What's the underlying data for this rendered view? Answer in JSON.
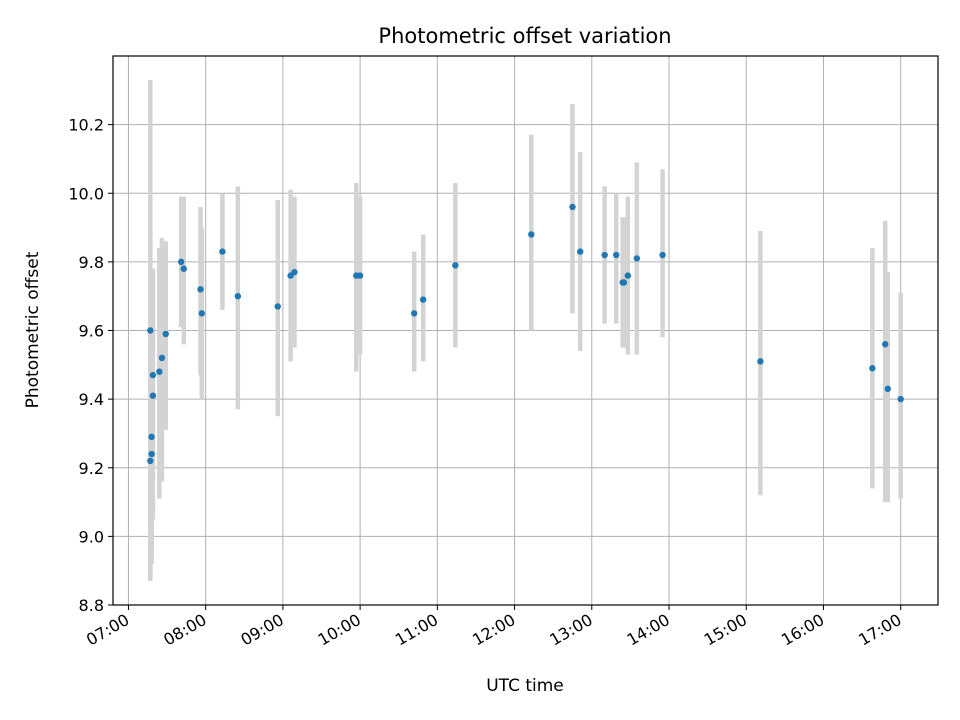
{
  "chart_data": {
    "type": "scatter",
    "title": "Photometric offset variation",
    "xlabel": "UTC time",
    "ylabel": "Photometric offset",
    "xlim": [
      "06:48",
      "17:29"
    ],
    "ylim": [
      8.8,
      10.4
    ],
    "x_ticks": [
      "07:00",
      "08:00",
      "09:00",
      "10:00",
      "11:00",
      "12:00",
      "13:00",
      "14:00",
      "15:00",
      "16:00",
      "17:00"
    ],
    "y_ticks": [
      8.8,
      9.0,
      9.2,
      9.4,
      9.6,
      9.8,
      10.0,
      10.2
    ],
    "grid": true,
    "colors": {
      "point": "#1f77b4",
      "errorbar": "#d3d3d3",
      "grid": "#b0b0b0"
    },
    "points": [
      {
        "x": "07:17",
        "y": 9.6,
        "ylow": 8.87,
        "yhigh": 10.33
      },
      {
        "x": "07:17",
        "y": 9.22,
        "ylow": 8.88,
        "yhigh": 9.56
      },
      {
        "x": "07:18",
        "y": 9.24,
        "ylow": 8.95,
        "yhigh": 9.53
      },
      {
        "x": "07:18",
        "y": 9.29,
        "ylow": 8.92,
        "yhigh": 9.66
      },
      {
        "x": "07:19",
        "y": 9.41,
        "ylow": 9.05,
        "yhigh": 9.77
      },
      {
        "x": "07:19",
        "y": 9.47,
        "ylow": 9.16,
        "yhigh": 9.78
      },
      {
        "x": "07:24",
        "y": 9.48,
        "ylow": 9.11,
        "yhigh": 9.84
      },
      {
        "x": "07:26",
        "y": 9.52,
        "ylow": 9.16,
        "yhigh": 9.87
      },
      {
        "x": "07:29",
        "y": 9.59,
        "ylow": 9.31,
        "yhigh": 9.86
      },
      {
        "x": "07:41",
        "y": 9.8,
        "ylow": 9.61,
        "yhigh": 9.99
      },
      {
        "x": "07:43",
        "y": 9.78,
        "ylow": 9.56,
        "yhigh": 9.99
      },
      {
        "x": "07:56",
        "y": 9.72,
        "ylow": 9.47,
        "yhigh": 9.96
      },
      {
        "x": "07:57",
        "y": 9.65,
        "ylow": 9.4,
        "yhigh": 9.9
      },
      {
        "x": "08:13",
        "y": 9.83,
        "ylow": 9.66,
        "yhigh": 10.0
      },
      {
        "x": "08:25",
        "y": 9.7,
        "ylow": 9.37,
        "yhigh": 10.02
      },
      {
        "x": "08:56",
        "y": 9.67,
        "ylow": 9.35,
        "yhigh": 9.98
      },
      {
        "x": "09:06",
        "y": 9.76,
        "ylow": 9.51,
        "yhigh": 10.01
      },
      {
        "x": "09:09",
        "y": 9.77,
        "ylow": 9.55,
        "yhigh": 9.99
      },
      {
        "x": "09:57",
        "y": 9.76,
        "ylow": 9.48,
        "yhigh": 10.03
      },
      {
        "x": "10:00",
        "y": 9.76,
        "ylow": 9.53,
        "yhigh": 9.99
      },
      {
        "x": "10:42",
        "y": 9.65,
        "ylow": 9.48,
        "yhigh": 9.83
      },
      {
        "x": "10:49",
        "y": 9.69,
        "ylow": 9.51,
        "yhigh": 9.88
      },
      {
        "x": "11:14",
        "y": 9.79,
        "ylow": 9.55,
        "yhigh": 10.03
      },
      {
        "x": "12:13",
        "y": 9.88,
        "ylow": 9.6,
        "yhigh": 10.17
      },
      {
        "x": "12:45",
        "y": 9.96,
        "ylow": 9.65,
        "yhigh": 10.26
      },
      {
        "x": "12:51",
        "y": 9.83,
        "ylow": 9.54,
        "yhigh": 10.12
      },
      {
        "x": "13:10",
        "y": 9.82,
        "ylow": 9.62,
        "yhigh": 10.02
      },
      {
        "x": "13:19",
        "y": 9.82,
        "ylow": 9.62,
        "yhigh": 10.0
      },
      {
        "x": "13:24",
        "y": 9.74,
        "ylow": 9.55,
        "yhigh": 9.93
      },
      {
        "x": "13:25",
        "y": 9.74,
        "ylow": 9.55,
        "yhigh": 9.93
      },
      {
        "x": "13:28",
        "y": 9.76,
        "ylow": 9.53,
        "yhigh": 9.99
      },
      {
        "x": "13:35",
        "y": 9.81,
        "ylow": 9.53,
        "yhigh": 10.09
      },
      {
        "x": "13:55",
        "y": 9.82,
        "ylow": 9.58,
        "yhigh": 10.07
      },
      {
        "x": "15:11",
        "y": 9.51,
        "ylow": 9.12,
        "yhigh": 9.89
      },
      {
        "x": "16:38",
        "y": 9.49,
        "ylow": 9.14,
        "yhigh": 9.84
      },
      {
        "x": "16:48",
        "y": 9.56,
        "ylow": 9.1,
        "yhigh": 9.92
      },
      {
        "x": "16:50",
        "y": 9.43,
        "ylow": 9.1,
        "yhigh": 9.77
      },
      {
        "x": "17:00",
        "y": 9.4,
        "ylow": 9.11,
        "yhigh": 9.71
      }
    ]
  }
}
